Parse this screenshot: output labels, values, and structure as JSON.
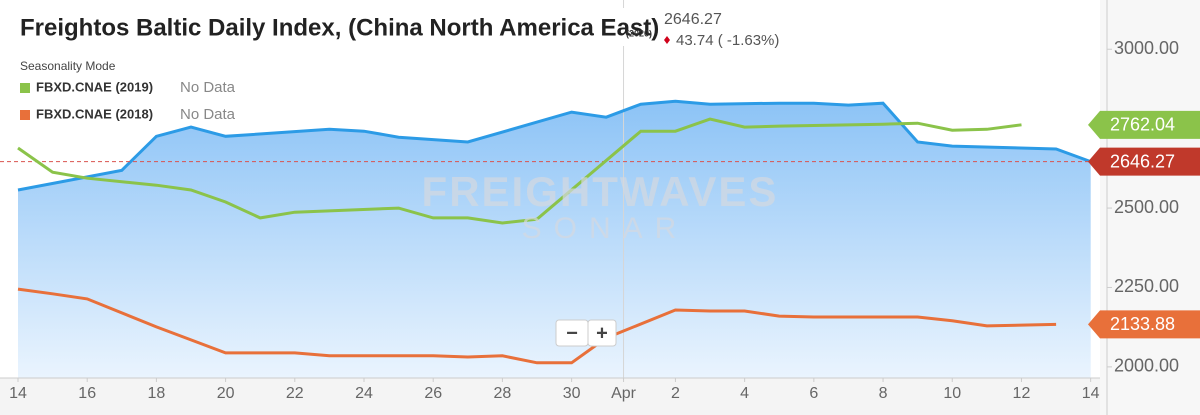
{
  "chart_data": {
    "type": "line",
    "title": "Freightos Baltic Daily Index, (China North America East)",
    "title_tag": "(2020)",
    "change": "43.74 ( -1.63%)",
    "legend_title": "Seasonality Mode",
    "watermark": "FREIGHTWAVES",
    "watermark_sub": "SONAR",
    "zoom_out": "−",
    "zoom_in": "+",
    "xlim": [
      -0.52,
      31.27
    ],
    "xticks": [
      {
        "value": 0,
        "label": "14"
      },
      {
        "value": 2,
        "label": "16"
      },
      {
        "value": 4,
        "label": "18"
      },
      {
        "value": 6,
        "label": "20"
      },
      {
        "value": 8,
        "label": "22"
      },
      {
        "value": 10,
        "label": "24"
      },
      {
        "value": 12,
        "label": "26"
      },
      {
        "value": 14,
        "label": "28"
      },
      {
        "value": 16,
        "label": "30"
      },
      {
        "value": 17.5,
        "label": "Apr"
      },
      {
        "value": 19,
        "label": "2"
      },
      {
        "value": 21,
        "label": "4"
      },
      {
        "value": 23,
        "label": "6"
      },
      {
        "value": 25,
        "label": "8"
      },
      {
        "value": 27,
        "label": "10"
      },
      {
        "value": 29,
        "label": "12"
      },
      {
        "value": 31,
        "label": "14"
      }
    ],
    "ylim": [
      1965,
      3155
    ],
    "yticks": [
      {
        "value": 2000,
        "label": "2000.00"
      },
      {
        "value": 2250,
        "label": "2250.00"
      },
      {
        "value": 2500,
        "label": "2500.00"
      },
      {
        "value": 3000,
        "label": "3000.00"
      }
    ],
    "series": [
      {
        "color": "#2c9be6",
        "area": true,
        "tag_color": "#c0392b",
        "x": [
          0,
          3,
          4,
          5,
          6,
          9,
          10,
          11,
          13,
          16,
          17,
          18,
          19,
          20,
          22,
          23,
          24,
          25,
          26,
          27,
          30,
          31
        ],
        "values": [
          2557,
          2619,
          2726,
          2755,
          2726,
          2748,
          2742,
          2723,
          2708,
          2802,
          2786,
          2827,
          2836,
          2827,
          2830,
          2830,
          2824,
          2830,
          2708,
          2695,
          2686,
          2646.27
        ]
      },
      {
        "name": "FBXD.CNAE (2019)",
        "note": "No Data",
        "color": "#8bc34a",
        "tag_color": "#8bc34a",
        "x": [
          0,
          1,
          2,
          4,
          5,
          6,
          7,
          8,
          11,
          12,
          13,
          14,
          15,
          18,
          19,
          20,
          21,
          22,
          25,
          26,
          27,
          28,
          29
        ],
        "values": [
          2689,
          2613,
          2594,
          2572,
          2557,
          2519,
          2469,
          2487,
          2500,
          2469,
          2469,
          2453,
          2465,
          2742,
          2742,
          2780,
          2755,
          2758,
          2764,
          2767,
          2745,
          2748,
          2762.04
        ]
      },
      {
        "name": "FBXD.CNAE (2018)",
        "note": "No Data",
        "color": "#e8703a",
        "tag_color": "#e8703a",
        "x": [
          0,
          1,
          2,
          4,
          5,
          6,
          8,
          9,
          12,
          13,
          14,
          15,
          16,
          17,
          19,
          20,
          21,
          22,
          23,
          26,
          27,
          28,
          30
        ],
        "values": [
          2245,
          2230,
          2214,
          2126,
          2085,
          2044,
          2044,
          2035,
          2035,
          2031,
          2035,
          2013,
          2013,
          2091,
          2179,
          2176,
          2176,
          2160,
          2157,
          2157,
          2145,
          2129,
          2133.88
        ]
      }
    ]
  }
}
